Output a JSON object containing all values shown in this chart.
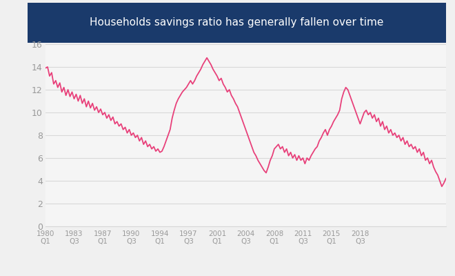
{
  "title": "Households savings ratio has generally fallen over time",
  "title_bg_color": "#1a3a6b",
  "title_text_color": "#ffffff",
  "line_color": "#e8407a",
  "bg_color": "#f0f0f0",
  "plot_bg_color": "#f5f5f5",
  "grid_color": "#d8d8d8",
  "tick_label_color": "#999999",
  "ylim": [
    0,
    16
  ],
  "yticks": [
    0,
    2,
    4,
    6,
    8,
    10,
    12,
    14,
    16
  ],
  "xtick_labels": [
    "1980\nQ1",
    "1983\nQ3",
    "1987\nQ1",
    "1990\nQ3",
    "1994\nQ1",
    "1997\nQ3",
    "2001\nQ1",
    "2004\nQ3",
    "2008\nQ1",
    "2011\nQ3",
    "2015\nQ1",
    "2018\nQ3"
  ],
  "savings": [
    13.9,
    14.0,
    13.2,
    13.5,
    12.5,
    12.8,
    12.2,
    12.6,
    11.8,
    12.2,
    11.5,
    12.0,
    11.4,
    11.8,
    11.2,
    11.6,
    11.0,
    11.5,
    10.8,
    11.2,
    10.5,
    11.0,
    10.4,
    10.8,
    10.2,
    10.5,
    10.0,
    10.3,
    9.8,
    10.0,
    9.5,
    9.8,
    9.3,
    9.6,
    9.0,
    9.2,
    8.8,
    9.0,
    8.5,
    8.7,
    8.2,
    8.5,
    8.0,
    8.2,
    7.8,
    8.0,
    7.5,
    7.8,
    7.2,
    7.5,
    7.0,
    7.2,
    6.8,
    7.0,
    6.6,
    6.8,
    6.5,
    6.6,
    7.0,
    7.5,
    8.0,
    8.5,
    9.5,
    10.2,
    10.8,
    11.2,
    11.5,
    11.8,
    12.0,
    12.2,
    12.5,
    12.8,
    12.5,
    12.8,
    13.2,
    13.5,
    13.8,
    14.2,
    14.5,
    14.8,
    14.5,
    14.2,
    13.8,
    13.5,
    13.2,
    12.8,
    13.0,
    12.5,
    12.2,
    11.8,
    12.0,
    11.5,
    11.2,
    10.8,
    10.5,
    10.0,
    9.5,
    9.0,
    8.5,
    8.0,
    7.5,
    7.0,
    6.5,
    6.2,
    5.8,
    5.5,
    5.2,
    4.9,
    4.7,
    5.2,
    5.8,
    6.2,
    6.8,
    7.0,
    7.2,
    6.8,
    7.0,
    6.5,
    6.8,
    6.2,
    6.5,
    6.0,
    6.3,
    5.8,
    6.2,
    5.8,
    6.0,
    5.5,
    6.0,
    5.8,
    6.2,
    6.5,
    6.8,
    7.0,
    7.5,
    7.8,
    8.2,
    8.5,
    8.0,
    8.5,
    8.8,
    9.2,
    9.5,
    9.8,
    10.2,
    11.2,
    11.8,
    12.2,
    12.0,
    11.5,
    11.0,
    10.5,
    10.0,
    9.5,
    9.0,
    9.5,
    10.0,
    10.2,
    9.8,
    10.0,
    9.5,
    9.8,
    9.2,
    9.5,
    8.8,
    9.2,
    8.5,
    8.8,
    8.2,
    8.5,
    8.0,
    8.2,
    7.8,
    8.0,
    7.5,
    7.8,
    7.2,
    7.5,
    7.0,
    7.2,
    6.8,
    7.0,
    6.5,
    6.8,
    6.2,
    6.5,
    5.8,
    6.0,
    5.5,
    5.8,
    5.2,
    4.8,
    4.5,
    4.0,
    3.5,
    3.8,
    4.2
  ]
}
